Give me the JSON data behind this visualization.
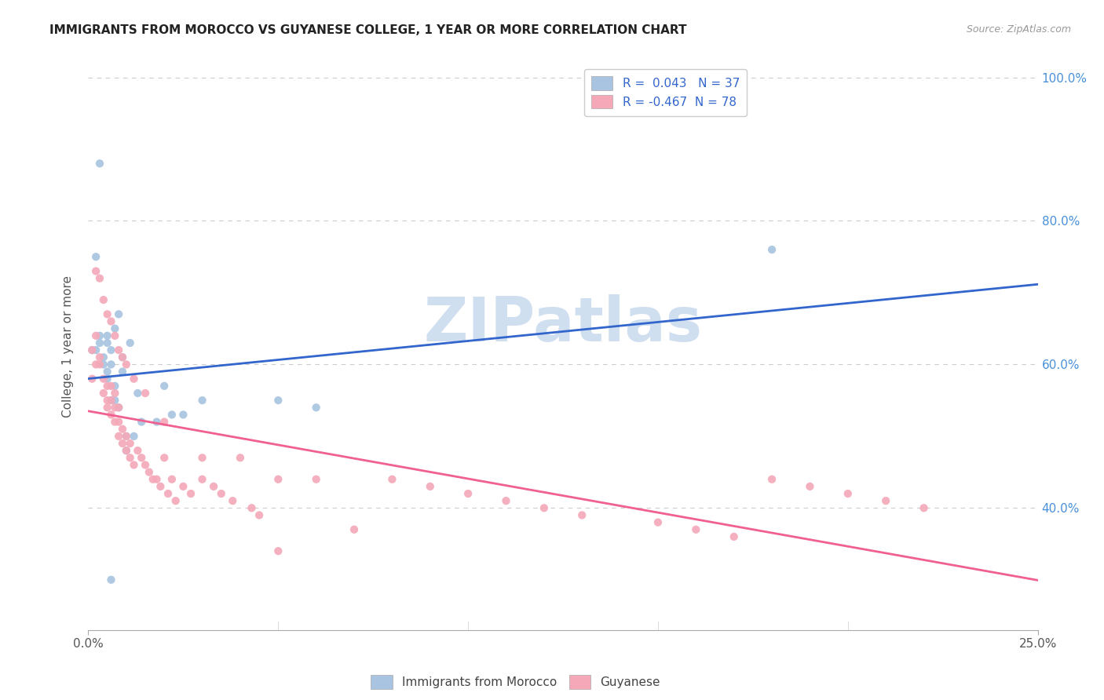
{
  "title": "IMMIGRANTS FROM MOROCCO VS GUYANESE COLLEGE, 1 YEAR OR MORE CORRELATION CHART",
  "source": "Source: ZipAtlas.com",
  "ylabel": "College, 1 year or more",
  "morocco_R": 0.043,
  "morocco_N": 37,
  "guyanese_R": -0.467,
  "guyanese_N": 78,
  "morocco_color": "#a8c4e0",
  "guyanese_color": "#f4a8b8",
  "morocco_line_color": "#3366cc",
  "guyanese_line_color": "#f06090",
  "legend_text_color": "#3366cc",
  "watermark_color": "#d0dff0",
  "background_color": "#ffffff",
  "grid_color": "#cccccc",
  "morocco_x": [
    0.001,
    0.002,
    0.002,
    0.003,
    0.003,
    0.004,
    0.004,
    0.005,
    0.005,
    0.005,
    0.005,
    0.006,
    0.006,
    0.006,
    0.007,
    0.007,
    0.007,
    0.008,
    0.008,
    0.009,
    0.009,
    0.01,
    0.01,
    0.011,
    0.012,
    0.013,
    0.014,
    0.018,
    0.02,
    0.022,
    0.025,
    0.03,
    0.05,
    0.06,
    0.18,
    0.003,
    0.006
  ],
  "morocco_y": [
    0.62,
    0.62,
    0.75,
    0.63,
    0.64,
    0.6,
    0.61,
    0.58,
    0.59,
    0.63,
    0.64,
    0.55,
    0.6,
    0.62,
    0.55,
    0.57,
    0.65,
    0.67,
    0.54,
    0.59,
    0.61,
    0.48,
    0.5,
    0.63,
    0.5,
    0.56,
    0.52,
    0.52,
    0.57,
    0.53,
    0.53,
    0.55,
    0.55,
    0.54,
    0.76,
    0.88,
    0.3
  ],
  "guyanese_x": [
    0.001,
    0.001,
    0.002,
    0.002,
    0.003,
    0.003,
    0.004,
    0.004,
    0.005,
    0.005,
    0.005,
    0.006,
    0.006,
    0.006,
    0.007,
    0.007,
    0.007,
    0.008,
    0.008,
    0.008,
    0.009,
    0.009,
    0.01,
    0.01,
    0.011,
    0.011,
    0.012,
    0.013,
    0.014,
    0.015,
    0.016,
    0.017,
    0.018,
    0.019,
    0.02,
    0.021,
    0.022,
    0.023,
    0.025,
    0.027,
    0.03,
    0.033,
    0.035,
    0.038,
    0.04,
    0.043,
    0.045,
    0.05,
    0.06,
    0.07,
    0.08,
    0.09,
    0.1,
    0.11,
    0.12,
    0.13,
    0.15,
    0.16,
    0.17,
    0.18,
    0.19,
    0.2,
    0.21,
    0.002,
    0.003,
    0.004,
    0.005,
    0.006,
    0.007,
    0.008,
    0.009,
    0.01,
    0.012,
    0.015,
    0.02,
    0.03,
    0.05,
    0.22
  ],
  "guyanese_y": [
    0.62,
    0.58,
    0.64,
    0.6,
    0.6,
    0.61,
    0.56,
    0.58,
    0.54,
    0.55,
    0.57,
    0.53,
    0.55,
    0.57,
    0.52,
    0.54,
    0.56,
    0.5,
    0.52,
    0.54,
    0.49,
    0.51,
    0.48,
    0.5,
    0.47,
    0.49,
    0.46,
    0.48,
    0.47,
    0.46,
    0.45,
    0.44,
    0.44,
    0.43,
    0.47,
    0.42,
    0.44,
    0.41,
    0.43,
    0.42,
    0.44,
    0.43,
    0.42,
    0.41,
    0.47,
    0.4,
    0.39,
    0.44,
    0.44,
    0.37,
    0.44,
    0.43,
    0.42,
    0.41,
    0.4,
    0.39,
    0.38,
    0.37,
    0.36,
    0.44,
    0.43,
    0.42,
    0.41,
    0.73,
    0.72,
    0.69,
    0.67,
    0.66,
    0.64,
    0.62,
    0.61,
    0.6,
    0.58,
    0.56,
    0.52,
    0.47,
    0.34,
    0.4
  ],
  "xlim": [
    0.0,
    0.25
  ],
  "ylim": [
    0.23,
    1.02
  ],
  "ytick_positions": [
    0.4,
    0.6,
    0.8,
    1.0
  ],
  "ytick_labels_right": [
    "40.0%",
    "60.0%",
    "80.0%",
    "100.0%"
  ],
  "xtick_positions": [
    0.0,
    0.25
  ],
  "xtick_labels": [
    "0.0%",
    "25.0%"
  ]
}
